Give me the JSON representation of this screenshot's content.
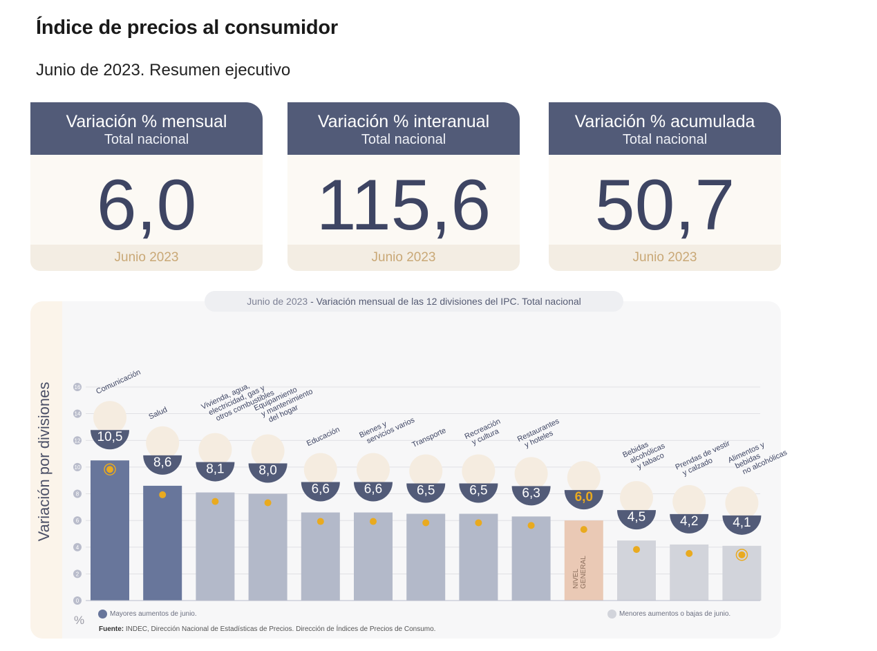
{
  "page": {
    "title": "Índice de precios al consumidor",
    "subtitle": "Junio de 2023. Resumen ejecutivo"
  },
  "cards": [
    {
      "title": "Variación % mensual",
      "subtitle": "Total nacional",
      "value": "6,0",
      "period": "Junio 2023"
    },
    {
      "title": "Variación % interanual",
      "subtitle": "Total nacional",
      "value": "115,6",
      "period": "Junio 2023"
    },
    {
      "title": "Variación % acumulada",
      "subtitle": "Total nacional",
      "value": "50,7",
      "period": "Junio 2023"
    }
  ],
  "chart_pill": {
    "date": "Junio de 2023",
    "text": " - Variación mensual de las 12 divisiones del IPC. Total nacional"
  },
  "legend": {
    "high": "Mayores aumentos de junio.",
    "low": "Menores aumentos o bajas de junio.",
    "percent_symbol": "%"
  },
  "source": {
    "label": "Fuente:",
    "text": " INDEC, Dirección Nacional de Estadísticas de Precios. Dirección de Índices de Precios de Consumo."
  },
  "colors": {
    "header": "#525b78",
    "value_text": "#3e4563",
    "bar_high": "#68769b",
    "bar_mid": "#b3b9c9",
    "bar_low": "#d2d4db",
    "bar_general": "#eac9b5",
    "marker": "#e9aa1f",
    "legend_high": "#68769b",
    "legend_low": "#d2d4db"
  },
  "chart_data": {
    "type": "bar",
    "ylabel": "Variación por divisiones",
    "ylim": [
      0,
      16
    ],
    "yticks": [
      0,
      2,
      4,
      6,
      8,
      10,
      12,
      14,
      16
    ],
    "grid": true,
    "categories": [
      "Comunicación",
      "Salud",
      "Vivienda, agua, electricidad, gas y otros combustibles",
      "Equipamiento y mantenimiento del hogar",
      "Educación",
      "Bienes y servicios varios",
      "Transporte",
      "Recreación y cultura",
      "Restaurantes y hoteles",
      "NIVEL GENERAL",
      "Bebidas alcohólicas y tabaco",
      "Prendas de vestir y calzado",
      "Alimentos y bebidas no alcohólicas"
    ],
    "category_lines": [
      [
        "Comunicación"
      ],
      [
        "Salud"
      ],
      [
        "Vivienda, agua,",
        "electricidad, gas y",
        "otros combustibles"
      ],
      [
        "Equipamiento",
        "y mantenimiento",
        "del hogar"
      ],
      [
        "Educación"
      ],
      [
        "Bienes y",
        "servicios varios"
      ],
      [
        "Transporte"
      ],
      [
        "Recreación",
        "y cultura"
      ],
      [
        "Restaurantes",
        "y hoteles"
      ],
      [],
      [
        "Bebidas",
        "alcohólicas",
        "y tabaco"
      ],
      [
        "Prendas de vestir",
        "y calzado"
      ],
      [
        "Alimentos y",
        "bebidas",
        "no alcohólicas"
      ]
    ],
    "general_label": [
      "NIVEL",
      "GENERAL"
    ],
    "values": [
      10.5,
      8.6,
      8.1,
      8.0,
      6.6,
      6.6,
      6.5,
      6.5,
      6.3,
      6.0,
      4.5,
      4.2,
      4.1
    ],
    "value_labels": [
      "10,5",
      "8,6",
      "8,1",
      "8,0",
      "6,6",
      "6,6",
      "6,5",
      "6,5",
      "6,3",
      "6,0",
      "4,5",
      "4,2",
      "4,1"
    ],
    "groups": [
      "high",
      "high",
      "mid",
      "mid",
      "mid",
      "mid",
      "mid",
      "mid",
      "mid",
      "general",
      "low",
      "low",
      "low"
    ],
    "highlighted": [
      0,
      12
    ]
  }
}
